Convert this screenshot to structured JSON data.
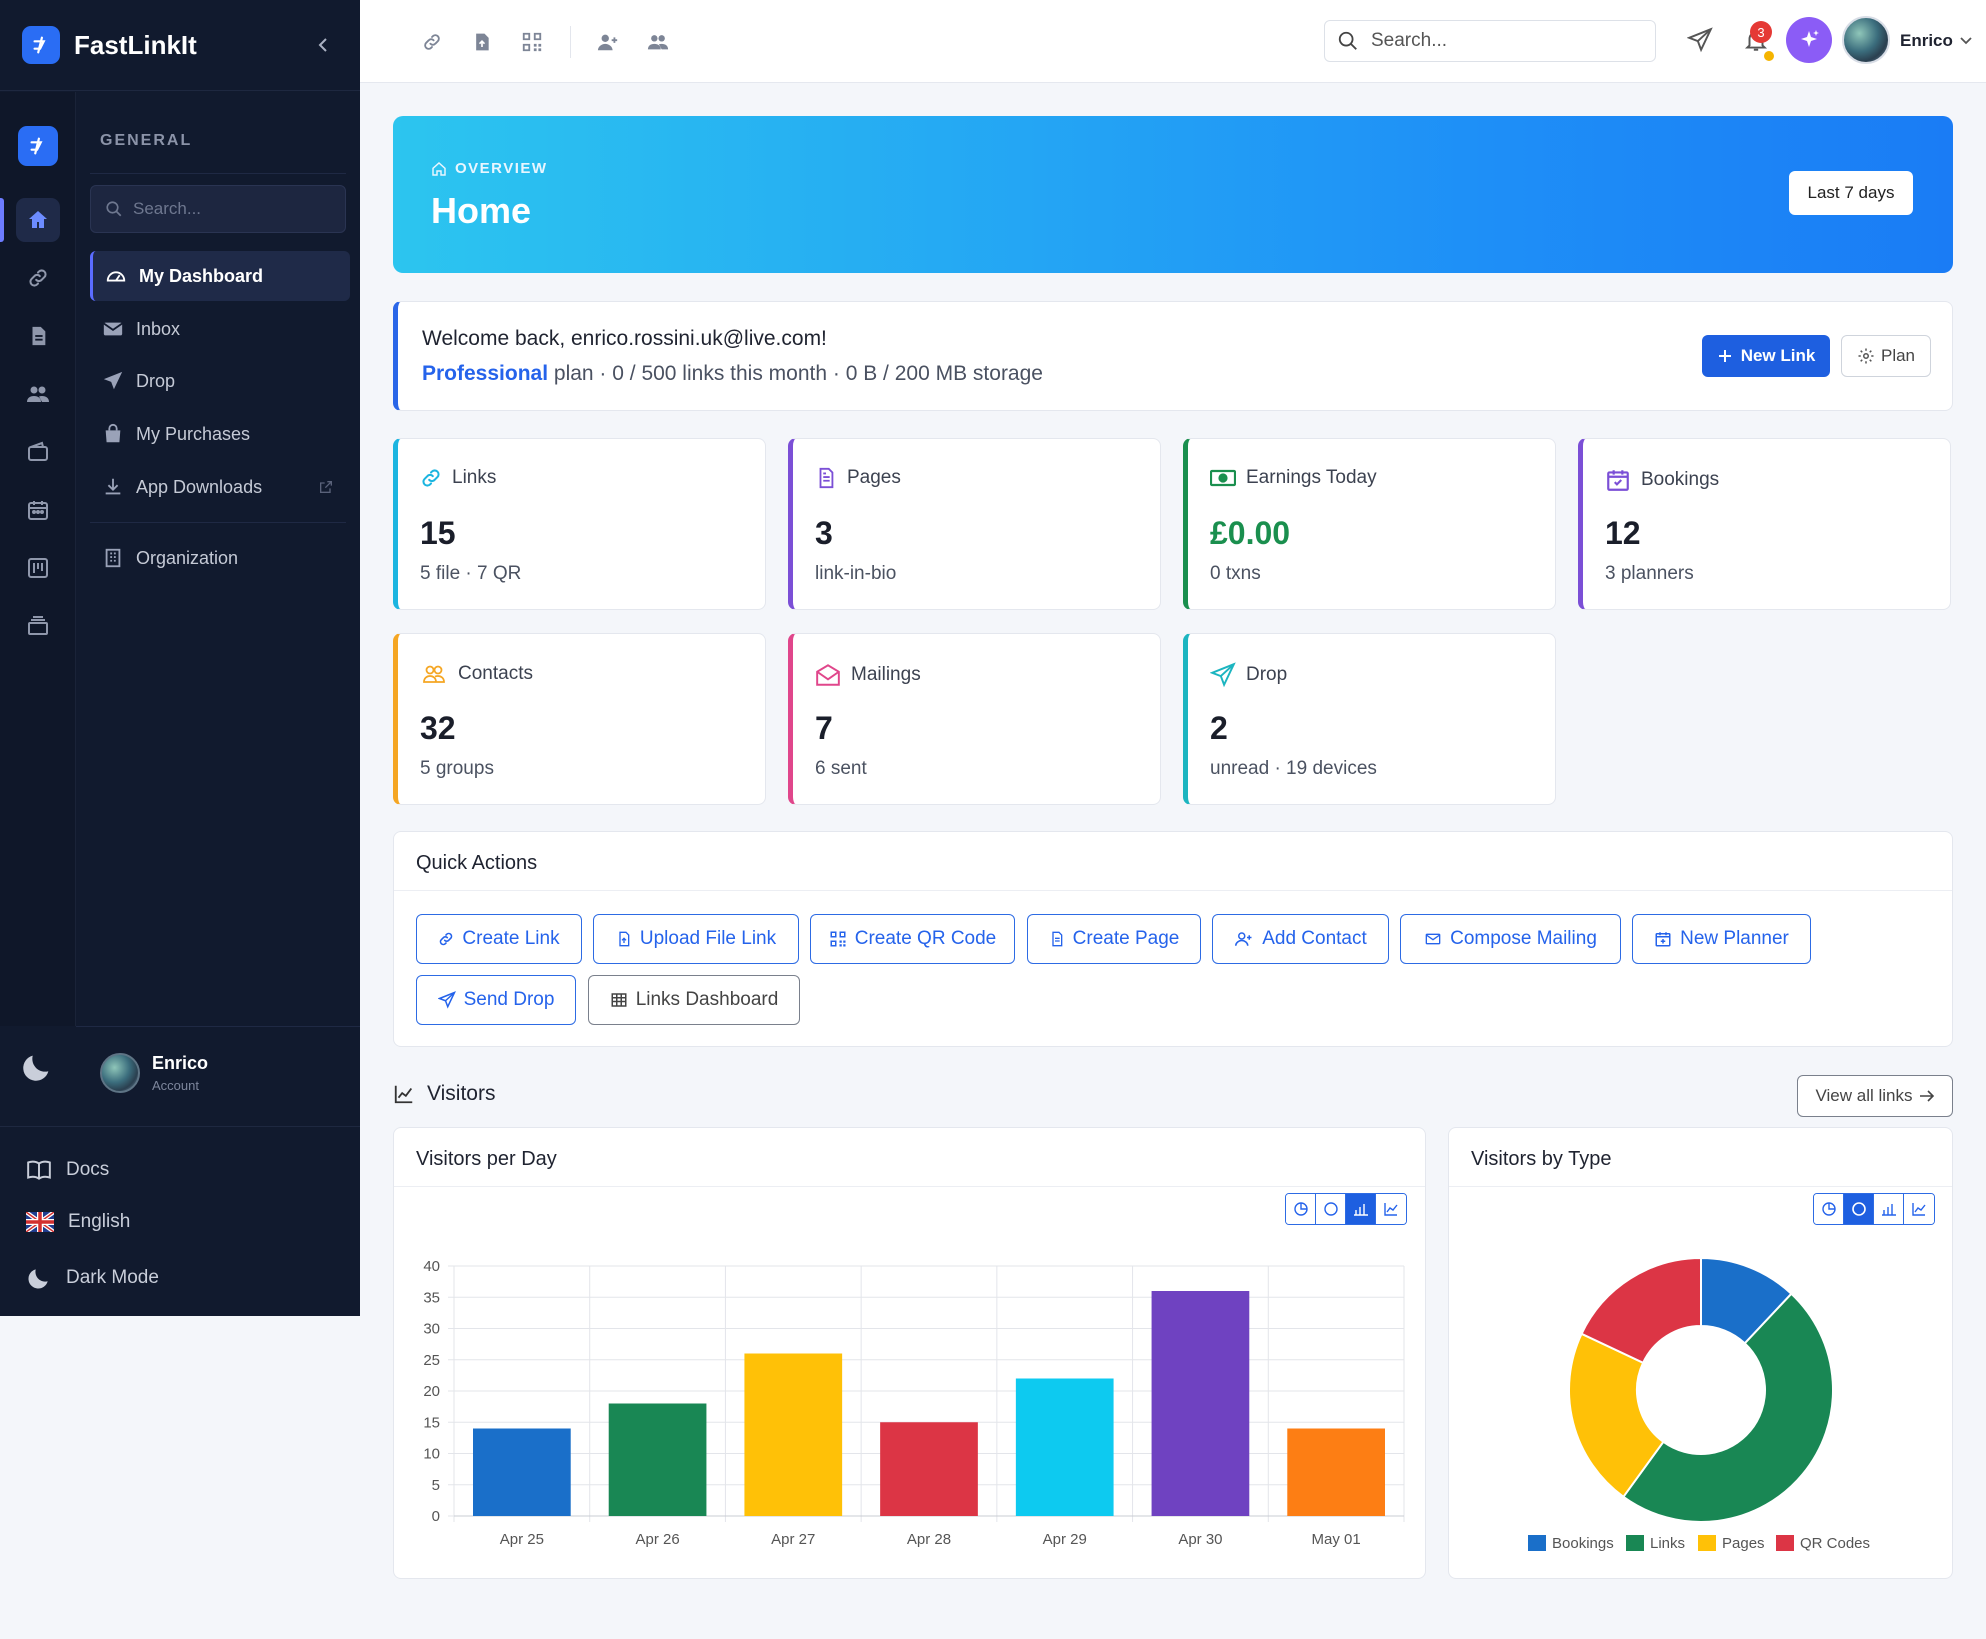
{
  "sidebar": {
    "brand": "FastLinkIt",
    "section": "GENERAL",
    "search_placeholder": "Search...",
    "items": [
      {
        "label": "My Dashboard"
      },
      {
        "label": "Inbox"
      },
      {
        "label": "Drop"
      },
      {
        "label": "My Purchases"
      },
      {
        "label": "App Downloads"
      },
      {
        "label": "Organization"
      }
    ],
    "user": {
      "name": "Enrico",
      "sub": "Account"
    },
    "bottom": [
      {
        "label": "Docs"
      },
      {
        "label": "English"
      },
      {
        "label": "Dark Mode"
      }
    ]
  },
  "topbar": {
    "search_placeholder": "Search...",
    "notifications": "3",
    "user": "Enrico"
  },
  "hero": {
    "kicker": "OVERVIEW",
    "title": "Home",
    "range": "Last 7 days"
  },
  "welcome": {
    "line1": "Welcome back, enrico.rossini.uk@live.com!",
    "plan": "Professional",
    "line2": "plan · 0 / 500 links this month · 0 B / 200 MB storage",
    "new_link": "New Link",
    "plan_btn": "Plan"
  },
  "stats": [
    {
      "label": "Links",
      "value": "15",
      "sub": "5 file · 7 QR",
      "color": "#1cb5e0"
    },
    {
      "label": "Pages",
      "value": "3",
      "sub": "link-in-bio",
      "color": "#7b4fd6"
    },
    {
      "label": "Earnings Today",
      "value": "£0.00",
      "sub": "0 txns",
      "color": "#1a8f4e"
    },
    {
      "label": "Bookings",
      "value": "12",
      "sub": "3 planners",
      "color": "#7b4fd6"
    },
    {
      "label": "Contacts",
      "value": "32",
      "sub": "5 groups",
      "color": "#f5a623"
    },
    {
      "label": "Mailings",
      "value": "7",
      "sub": "6 sent",
      "color": "#e0468b"
    },
    {
      "label": "Drop",
      "value": "2",
      "sub": "unread · 19 devices",
      "color": "#1cb5c0"
    }
  ],
  "quick_actions": {
    "title": "Quick Actions",
    "buttons": [
      {
        "label": "Create Link"
      },
      {
        "label": "Upload File Link"
      },
      {
        "label": "Create QR Code"
      },
      {
        "label": "Create Page"
      },
      {
        "label": "Add Contact"
      },
      {
        "label": "Compose Mailing"
      },
      {
        "label": "New Planner"
      },
      {
        "label": "Send Drop"
      },
      {
        "label": "Links Dashboard"
      }
    ]
  },
  "visitors": {
    "title": "Visitors",
    "view_all": "View all links"
  },
  "chart_data": [
    {
      "type": "bar",
      "title": "Visitors per Day",
      "categories": [
        "Apr 25",
        "Apr 26",
        "Apr 27",
        "Apr 28",
        "Apr 29",
        "Apr 30",
        "May 01"
      ],
      "values": [
        14,
        18,
        26,
        15,
        22,
        36,
        14
      ],
      "colors": [
        "#1a6fc9",
        "#198754",
        "#ffc107",
        "#dc3545",
        "#0dcaf0",
        "#6f42c1",
        "#fd7e14"
      ],
      "ylim": [
        0,
        40
      ],
      "yticks": [
        0,
        5,
        10,
        15,
        20,
        25,
        30,
        35,
        40
      ],
      "grid": true
    },
    {
      "type": "pie",
      "title": "Visitors by Type",
      "labels": [
        "Bookings",
        "Links",
        "Pages",
        "QR Codes"
      ],
      "values": [
        12,
        48,
        22,
        18
      ],
      "colors": [
        "#1a6fc9",
        "#198754",
        "#ffc107",
        "#dc3545"
      ],
      "legend": "bottom"
    }
  ]
}
